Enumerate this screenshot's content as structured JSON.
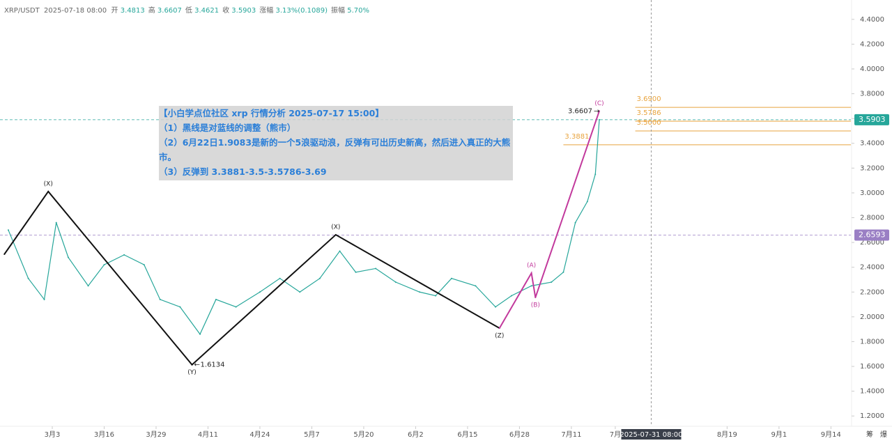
{
  "header": {
    "symbol": "XRP/USDT",
    "time": "2025-07-18 08:00",
    "fields": [
      {
        "label": "开",
        "value": "3.4813"
      },
      {
        "label": "高",
        "value": "3.6607"
      },
      {
        "label": "低",
        "value": "3.4621"
      },
      {
        "label": "收",
        "value": "3.5903"
      },
      {
        "label": "涨幅",
        "value": "3.13%(0.1089)"
      },
      {
        "label": "振幅",
        "value": "5.70%"
      }
    ]
  },
  "note": {
    "title": "【小白学点位社区 xrp 行情分析 2025-07-17 15:00】",
    "lines": [
      "（1）黑线是对蓝线的调整（熊市）",
      "（2）6月22日1.9083是新的一个5浪驱动浪，反弹有可出历史新高，然后进入真正的大熊市。",
      "（3）反弹到 3.3881-3.5-3.5786-3.69"
    ]
  },
  "footer": {
    "buttons": [
      "筹",
      "爆"
    ]
  },
  "chart_data": {
    "type": "line",
    "xlim": [
      -13,
      200
    ],
    "ylim": [
      1.1,
      4.5
    ],
    "xticks": [
      {
        "value": 0,
        "label": "3月3"
      },
      {
        "value": 13,
        "label": "3月16"
      },
      {
        "value": 26,
        "label": "3月29"
      },
      {
        "value": 39,
        "label": "4月11"
      },
      {
        "value": 52,
        "label": "4月24"
      },
      {
        "value": 65,
        "label": "5月7"
      },
      {
        "value": 78,
        "label": "5月20"
      },
      {
        "value": 91,
        "label": "6月2"
      },
      {
        "value": 104,
        "label": "6月15"
      },
      {
        "value": 117,
        "label": "6月28"
      },
      {
        "value": 130,
        "label": "7月11"
      },
      {
        "value": 141,
        "label": "7月"
      },
      {
        "value": 169,
        "label": "8月19"
      },
      {
        "value": 182,
        "label": "9月1"
      },
      {
        "value": 195,
        "label": "9月14"
      }
    ],
    "yticks": [
      {
        "value": 1.2,
        "label": "1.2000"
      },
      {
        "value": 1.4,
        "label": "1.4000"
      },
      {
        "value": 1.6,
        "label": "1.6000"
      },
      {
        "value": 1.8,
        "label": "1.8000"
      },
      {
        "value": 2,
        "label": "2.0000"
      },
      {
        "value": 2.2,
        "label": "2.2000"
      },
      {
        "value": 2.4,
        "label": "2.4000"
      },
      {
        "value": 2.6,
        "label": "2.6000"
      },
      {
        "value": 2.8,
        "label": "2.8000"
      },
      {
        "value": 3,
        "label": "3.0000"
      },
      {
        "value": 3.2,
        "label": "3.2000"
      },
      {
        "value": 3.4,
        "label": "3.4000"
      },
      {
        "value": 3.6,
        "label": "3.6000"
      },
      {
        "value": 3.8,
        "label": "3.8000"
      },
      {
        "value": 4,
        "label": "4.0000"
      },
      {
        "value": 4.2,
        "label": "4.2000"
      },
      {
        "value": 4.4,
        "label": "4.4000"
      }
    ],
    "series": [
      {
        "color": "#26a69a",
        "x": [
          -11,
          -6,
          -2,
          1,
          4,
          9,
          13,
          18,
          23,
          27,
          32,
          37,
          41,
          46,
          52,
          57,
          62,
          67,
          72,
          76,
          81,
          86,
          92,
          96,
          100,
          106,
          111,
          115,
          120,
          125,
          128,
          131,
          134,
          136,
          137
        ],
        "values": [
          2.7,
          2.31,
          2.14,
          2.76,
          2.48,
          2.25,
          2.42,
          2.5,
          2.42,
          2.14,
          2.08,
          1.86,
          2.14,
          2.08,
          2.2,
          2.31,
          2.2,
          2.31,
          2.53,
          2.36,
          2.39,
          2.28,
          2.2,
          2.17,
          2.31,
          2.25,
          2.08,
          2.17,
          2.25,
          2.28,
          2.36,
          2.76,
          2.93,
          3.15,
          3.59
        ]
      },
      {
        "color": "#111111",
        "x": [
          -12,
          -1,
          35,
          71,
          112
        ],
        "values": [
          2.505,
          3.011,
          1.6134,
          2.662,
          1.9083
        ],
        "point_labels": [
          null,
          "(X)",
          "(Y)",
          "(X)",
          "(Z)"
        ],
        "value_labels": [
          null,
          null,
          "1.6134",
          null,
          null
        ]
      },
      {
        "color": "#c2399c",
        "x": [
          112,
          120,
          121,
          137
        ],
        "values": [
          1.9083,
          2.353,
          2.156,
          3.6607
        ],
        "point_labels": [
          null,
          "(A)",
          "(B)",
          "(C)"
        ],
        "value_labels": [
          null,
          null,
          null,
          "3.6607"
        ]
      }
    ],
    "levels": [
      {
        "value": 3.69,
        "label": "3.6900",
        "x_start": 146
      },
      {
        "value": 3.5786,
        "label": "3.5786",
        "x_start": 146
      },
      {
        "value": 3.5,
        "label": "3.5000",
        "x_start": 146
      },
      {
        "value": 3.3881,
        "label": "3.3881",
        "x_start": 128
      }
    ],
    "level_color": "#e8a33d",
    "price_tags": [
      {
        "value": 3.5903,
        "label": "3.5903",
        "color": "#26a69a"
      },
      {
        "value": 2.6593,
        "label": "2.6593",
        "color": "#9a7fc4"
      }
    ],
    "cursor": {
      "x": 150,
      "label": "2025-07-31 08:00"
    }
  }
}
